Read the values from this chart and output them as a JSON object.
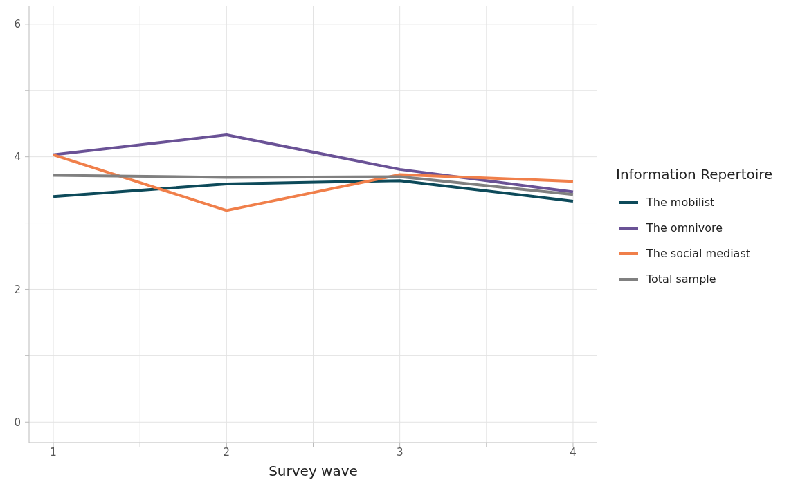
{
  "chart_data": {
    "type": "line",
    "xlabel": "Survey wave",
    "legend_title": "Information Repertoire",
    "legend": "right",
    "grid": true,
    "x": [
      1,
      2,
      3,
      4
    ],
    "xlim": [
      0.86,
      4.14
    ],
    "xticks": [
      1,
      {
        "value": 1.5,
        "label": null
      },
      2,
      {
        "value": 2.5,
        "label": null
      },
      3,
      {
        "value": 3.5,
        "label": null
      },
      4
    ],
    "ylim": [
      -0.31,
      6.28
    ],
    "yticks": [
      0,
      {
        "value": 1,
        "label": null
      },
      2,
      {
        "value": 3,
        "label": null
      },
      4,
      {
        "value": 5,
        "label": null
      },
      6
    ],
    "line_style": "solid",
    "marker": "none",
    "series": [
      {
        "name": "The mobilist",
        "color": "#0d4a5a",
        "values": [
          3.4,
          3.59,
          3.64,
          3.33
        ]
      },
      {
        "name": "The omnivore",
        "color": "#6a5296",
        "values": [
          4.03,
          4.33,
          3.81,
          3.47
        ]
      },
      {
        "name": "The social mediast",
        "color": "#f07f4a",
        "values": [
          4.03,
          3.19,
          3.73,
          3.63
        ]
      },
      {
        "name": "Total sample",
        "color": "#808080",
        "values": [
          3.72,
          3.69,
          3.7,
          3.43
        ]
      }
    ]
  }
}
